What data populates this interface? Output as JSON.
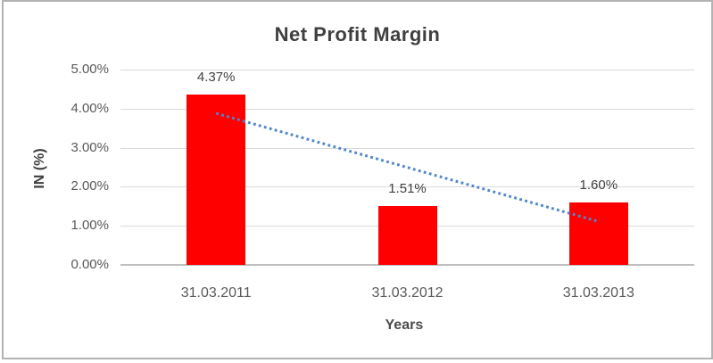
{
  "chart_data": {
    "type": "bar",
    "title": "Net Profit Margin",
    "categories": [
      "31.03.2011",
      "31.03.2012",
      "31.03.2013"
    ],
    "values": [
      4.37,
      1.51,
      1.6
    ],
    "value_labels": [
      "4.37%",
      "1.51%",
      "1.60%"
    ],
    "xlabel": "Years",
    "ylabel": "IN (%)",
    "ylim": [
      0,
      5
    ],
    "y_ticks": [
      {
        "value": 0,
        "label": "0.00%"
      },
      {
        "value": 1,
        "label": "1.00%"
      },
      {
        "value": 2,
        "label": "2.00%"
      },
      {
        "value": 3,
        "label": "3.00%"
      },
      {
        "value": 4,
        "label": "4.00%"
      },
      {
        "value": 5,
        "label": "5.00%"
      }
    ],
    "grid": true,
    "legend": "none",
    "bar_color": "#FF0000",
    "trendline": {
      "type": "linear",
      "style": "dotted",
      "color": "#4E86C8",
      "start_value": 3.88,
      "end_value": 1.11
    },
    "colors": {
      "title_text": "#3F3F3F",
      "tick_text": "#595959",
      "data_label_text": "#3F3F3F",
      "axis_title_text": "#4D4D4D",
      "gridline": "#D9D9D9",
      "axis_line": "#BFBFBF",
      "frame_border": "#B3B3B3",
      "background": "#FFFFFF"
    }
  }
}
